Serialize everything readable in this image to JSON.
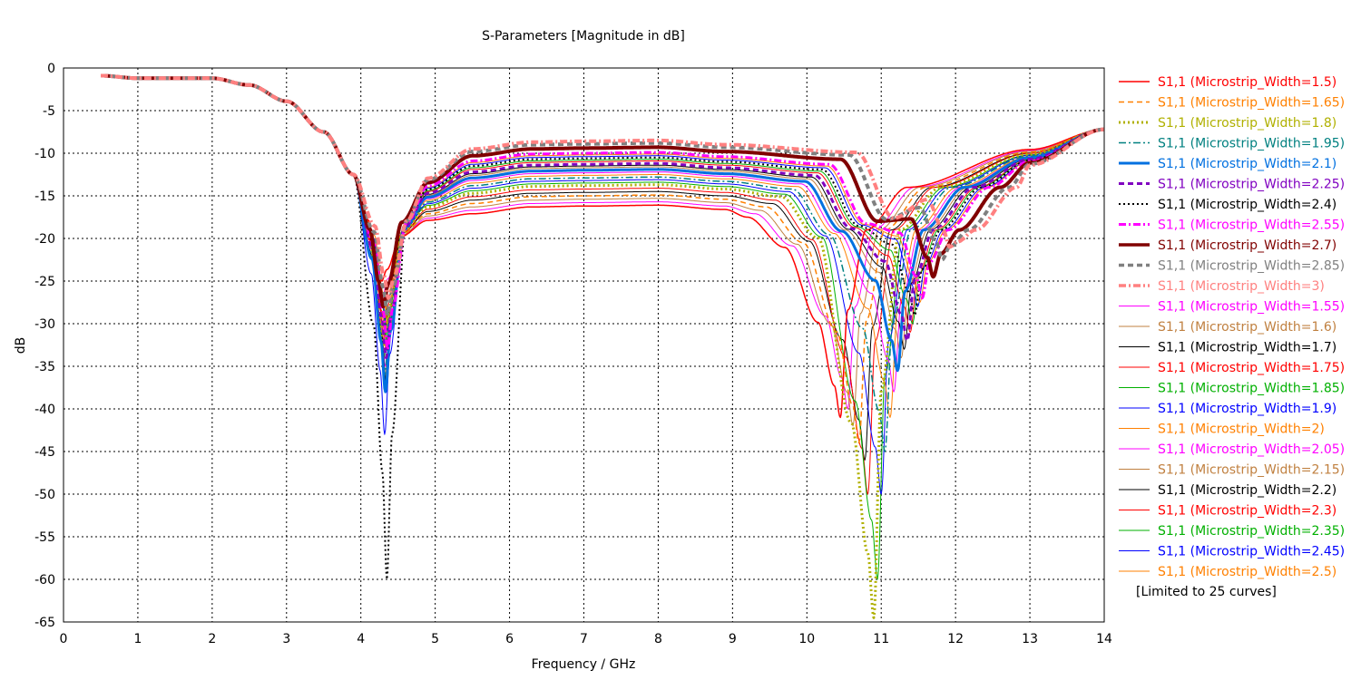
{
  "chart_data": {
    "type": "line",
    "title": "S-Parameters [Magnitude in dB]",
    "xlabel": "Frequency / GHz",
    "ylabel": "dB",
    "xlim": [
      0,
      14
    ],
    "ylim": [
      -65,
      0
    ],
    "xticks": [
      "0",
      "1",
      "2",
      "3",
      "4",
      "5",
      "6",
      "7",
      "8",
      "9",
      "10",
      "11",
      "12",
      "13",
      "14"
    ],
    "yticks": [
      "0",
      "-5",
      "-10",
      "-15",
      "-20",
      "-25",
      "-30",
      "-35",
      "-40",
      "-45",
      "-50",
      "-55",
      "-60",
      "-65"
    ],
    "grid": true,
    "legend_position": "right",
    "legend_note": "[Limited to 25 curves]",
    "series": [
      {
        "name": "S1,1 (Microstrip_Width=1.5)",
        "color": "#ff0000",
        "style": "solid",
        "width": 1.5,
        "dip1": [
          4.28,
          -25
        ],
        "dip2": [
          10.45,
          -41
        ],
        "plateau": -16.2
      },
      {
        "name": "S1,1 (Microstrip_Width=1.65)",
        "color": "#ff8000",
        "style": "dashed",
        "width": 1.5,
        "dip1": [
          4.3,
          -30
        ],
        "dip2": [
          10.7,
          -44
        ],
        "plateau": -15.0
      },
      {
        "name": "S1,1 (Microstrip_Width=1.8)",
        "color": "#b0b000",
        "style": "dotted",
        "width": 3,
        "dip1": [
          4.31,
          -33
        ],
        "dip2": [
          10.9,
          -64.5
        ],
        "plateau": -13.8
      },
      {
        "name": "S1,1 (Microstrip_Width=1.95)",
        "color": "#008080",
        "style": "dashdot",
        "width": 1.5,
        "dip1": [
          4.32,
          -36
        ],
        "dip2": [
          11.05,
          -45
        ],
        "plateau": -12.9
      },
      {
        "name": "S1,1 (Microstrip_Width=2.1)",
        "color": "#0070e0",
        "style": "solid",
        "width": 3,
        "dip1": [
          4.33,
          -38
        ],
        "dip2": [
          11.22,
          -35.5
        ],
        "plateau": -12.0
      },
      {
        "name": "S1,1 (Microstrip_Width=2.25)",
        "color": "#8000c0",
        "style": "dashed",
        "width": 3,
        "dip1": [
          4.34,
          -34
        ],
        "dip2": [
          11.35,
          -32
        ],
        "plateau": -11.3
      },
      {
        "name": "S1,1 (Microstrip_Width=2.4)",
        "color": "#000000",
        "style": "dotted",
        "width": 2,
        "dip1": [
          4.35,
          -60
        ],
        "dip2": [
          11.45,
          -29
        ],
        "plateau": -10.6
      },
      {
        "name": "S1,1 (Microstrip_Width=2.55)",
        "color": "#ff00ff",
        "style": "dashdot",
        "width": 3,
        "dip1": [
          4.36,
          -33
        ],
        "dip2": [
          11.55,
          -27
        ],
        "plateau": -10.0
      },
      {
        "name": "S1,1 (Microstrip_Width=2.7)",
        "color": "#800000",
        "style": "solid",
        "width": 4,
        "dip1": [
          4.3,
          -28
        ],
        "dip2": [
          11.7,
          -24.5
        ],
        "plateau": -9.4
      },
      {
        "name": "S1,1 (Microstrip_Width=2.85)",
        "color": "#808080",
        "style": "dashed",
        "width": 4,
        "dip1": [
          4.36,
          -29
        ],
        "dip2": [
          11.82,
          -22.5
        ],
        "plateau": -8.9
      },
      {
        "name": "S1,1 (Microstrip_Width=3)",
        "color": "#ff8080",
        "style": "dashdot",
        "width": 4,
        "dip1": [
          4.37,
          -27
        ],
        "dip2": [
          11.92,
          -21
        ],
        "plateau": -8.6
      },
      {
        "name": "S1,1 (Microstrip_Width=1.55)",
        "color": "#ff00ff",
        "style": "solid",
        "width": 1,
        "dip1": [
          4.29,
          -27
        ],
        "dip2": [
          10.55,
          -40
        ],
        "plateau": -15.8
      },
      {
        "name": "S1,1 (Microstrip_Width=1.6)",
        "color": "#c08040",
        "style": "solid",
        "width": 1,
        "dip1": [
          4.3,
          -28
        ],
        "dip2": [
          10.62,
          -42
        ],
        "plateau": -15.4
      },
      {
        "name": "S1,1 (Microstrip_Width=1.7)",
        "color": "#000000",
        "style": "solid",
        "width": 1,
        "dip1": [
          4.3,
          -31
        ],
        "dip2": [
          10.78,
          -46
        ],
        "plateau": -14.6
      },
      {
        "name": "S1,1 (Microstrip_Width=1.75)",
        "color": "#ff0000",
        "style": "solid",
        "width": 1,
        "dip1": [
          4.31,
          -32
        ],
        "dip2": [
          10.82,
          -50
        ],
        "plateau": -14.2
      },
      {
        "name": "S1,1 (Microstrip_Width=1.85)",
        "color": "#00b000",
        "style": "solid",
        "width": 1,
        "dip1": [
          4.31,
          -34
        ],
        "dip2": [
          10.95,
          -60
        ],
        "plateau": -13.5
      },
      {
        "name": "S1,1 (Microstrip_Width=1.9)",
        "color": "#0000ff",
        "style": "solid",
        "width": 1,
        "dip1": [
          4.32,
          -43
        ],
        "dip2": [
          11.0,
          -50
        ],
        "plateau": -13.2
      },
      {
        "name": "S1,1 (Microstrip_Width=2)",
        "color": "#ff8000",
        "style": "solid",
        "width": 1,
        "dip1": [
          4.32,
          -37
        ],
        "dip2": [
          11.12,
          -41
        ],
        "plateau": -12.6
      },
      {
        "name": "S1,1 (Microstrip_Width=2.05)",
        "color": "#ff00ff",
        "style": "solid",
        "width": 1,
        "dip1": [
          4.33,
          -35
        ],
        "dip2": [
          11.17,
          -38
        ],
        "plateau": -12.3
      },
      {
        "name": "S1,1 (Microstrip_Width=2.15)",
        "color": "#c08040",
        "style": "solid",
        "width": 1,
        "dip1": [
          4.33,
          -36
        ],
        "dip2": [
          11.27,
          -34
        ],
        "plateau": -11.7
      },
      {
        "name": "S1,1 (Microstrip_Width=2.2)",
        "color": "#000000",
        "style": "solid",
        "width": 1,
        "dip1": [
          4.34,
          -37
        ],
        "dip2": [
          11.31,
          -33
        ],
        "plateau": -11.5
      },
      {
        "name": "S1,1 (Microstrip_Width=2.3)",
        "color": "#ff0000",
        "style": "solid",
        "width": 1,
        "dip1": [
          4.34,
          -33
        ],
        "dip2": [
          11.39,
          -31
        ],
        "plateau": -11.0
      },
      {
        "name": "S1,1 (Microstrip_Width=2.35)",
        "color": "#00b000",
        "style": "solid",
        "width": 1,
        "dip1": [
          4.35,
          -32
        ],
        "dip2": [
          11.42,
          -30
        ],
        "plateau": -10.8
      },
      {
        "name": "S1,1 (Microstrip_Width=2.45)",
        "color": "#0000ff",
        "style": "solid",
        "width": 1,
        "dip1": [
          4.35,
          -31
        ],
        "dip2": [
          11.49,
          -28
        ],
        "plateau": -10.4
      },
      {
        "name": "S1,1 (Microstrip_Width=2.5)",
        "color": "#ff8000",
        "style": "solid",
        "width": 1,
        "dip1": [
          4.36,
          -30
        ],
        "dip2": [
          11.52,
          -27.5
        ],
        "plateau": -10.2
      }
    ]
  }
}
